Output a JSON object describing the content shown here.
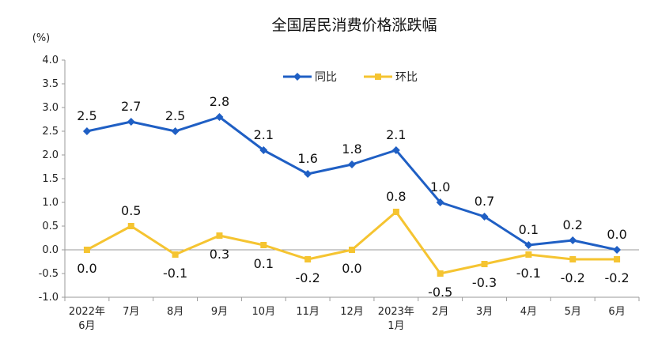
{
  "chart_data": {
    "type": "line",
    "title": "全国居民消费价格涨跌幅",
    "ylabel": "(%)",
    "ylim": [
      -1.0,
      4.0
    ],
    "yticks": [
      "4.0",
      "3.5",
      "3.0",
      "2.5",
      "2.0",
      "1.5",
      "1.0",
      "0.5",
      "0.0",
      "-0.5",
      "-1.0"
    ],
    "categories": [
      [
        "2022年",
        "6月"
      ],
      [
        "7月"
      ],
      [
        "8月"
      ],
      [
        "9月"
      ],
      [
        "10月"
      ],
      [
        "11月"
      ],
      [
        "12月"
      ],
      [
        "2023年",
        "1月"
      ],
      [
        "2月"
      ],
      [
        "3月"
      ],
      [
        "4月"
      ],
      [
        "5月"
      ],
      [
        "6月"
      ]
    ],
    "series": [
      {
        "name": "同比",
        "color": "#1f5fc4",
        "values": [
          2.5,
          2.7,
          2.5,
          2.8,
          2.1,
          1.6,
          1.8,
          2.1,
          1.0,
          0.7,
          0.1,
          0.2,
          0.0
        ],
        "labels": [
          "2.5",
          "2.7",
          "2.5",
          "2.8",
          "2.1",
          "1.6",
          "1.8",
          "2.1",
          "1.0",
          "0.7",
          "0.1",
          "0.2",
          "0.0"
        ],
        "marker": "diamond"
      },
      {
        "name": "环比",
        "color": "#f5c431",
        "values": [
          0.0,
          0.5,
          -0.1,
          0.3,
          0.1,
          -0.2,
          0.0,
          0.8,
          -0.5,
          -0.3,
          -0.1,
          -0.2,
          -0.2
        ],
        "labels": [
          "0.0",
          "0.5",
          "-0.1",
          "0.3",
          "0.1",
          "-0.2",
          "0.0",
          "0.8",
          "-0.5",
          "-0.3",
          "-0.1",
          "-0.2",
          "-0.2"
        ],
        "marker": "square"
      }
    ],
    "legend_position": "top-center",
    "grid": false
  }
}
